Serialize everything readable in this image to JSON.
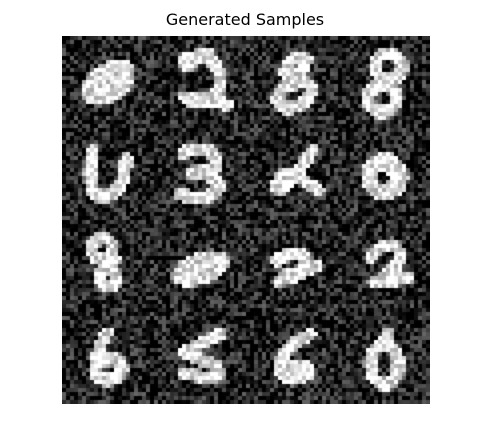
{
  "title": "Generated Samples",
  "grid": {
    "rows": 4,
    "cols": 4,
    "background_color": "#000000",
    "foreground_color": "#ffffff",
    "noise": "gaussian",
    "samples": [
      {
        "digit": "0"
      },
      {
        "digit": "2"
      },
      {
        "digit": "8"
      },
      {
        "digit": "8"
      },
      {
        "digit": "U"
      },
      {
        "digit": "3"
      },
      {
        "digit": "2"
      },
      {
        "digit": "0"
      },
      {
        "digit": "8"
      },
      {
        "digit": "0"
      },
      {
        "digit": "2"
      },
      {
        "digit": "2"
      },
      {
        "digit": "6"
      },
      {
        "digit": "5"
      },
      {
        "digit": "6"
      },
      {
        "digit": "0"
      }
    ]
  }
}
